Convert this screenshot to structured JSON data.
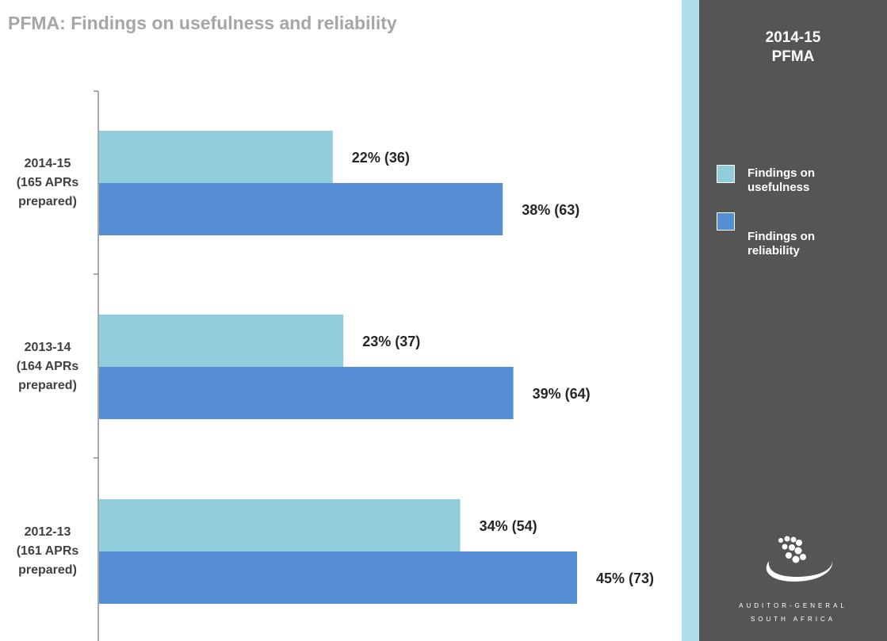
{
  "chart_data": {
    "type": "bar",
    "orientation": "horizontal",
    "title": "PFMA:  Findings on usefulness and reliability",
    "categories": [
      [
        "2014-15",
        "(165 APRs",
        "prepared)"
      ],
      [
        "2013-14",
        "(164 APRs",
        "prepared)"
      ],
      [
        "2012-13",
        "(161 APRs",
        "prepared)"
      ]
    ],
    "series": [
      {
        "name": "Findings on usefulness",
        "color": "#92cddc",
        "values": [
          22,
          23,
          34
        ],
        "labels": [
          "22% (36)",
          "23% (37)",
          "34% (54)"
        ]
      },
      {
        "name": "Findings on reliability",
        "color": "#558ed5",
        "values": [
          38,
          39,
          45
        ],
        "labels": [
          "38% (63)",
          "39% (64)",
          "45% (73)"
        ]
      }
    ],
    "xlim": [
      0,
      60
    ],
    "grid": false,
    "legend_position": "right"
  },
  "sidebar": {
    "title_line1": "2014-15",
    "title_line2": "PFMA",
    "legend": [
      {
        "line1": "Findings on",
        "line2": "usefulness",
        "color": "#92cddc"
      },
      {
        "line1": "Findings on",
        "line2": "reliability",
        "color": "#558ed5"
      }
    ],
    "logo": {
      "line1": "AUDITOR-GENERAL",
      "line2": "SOUTH AFRICA"
    }
  }
}
